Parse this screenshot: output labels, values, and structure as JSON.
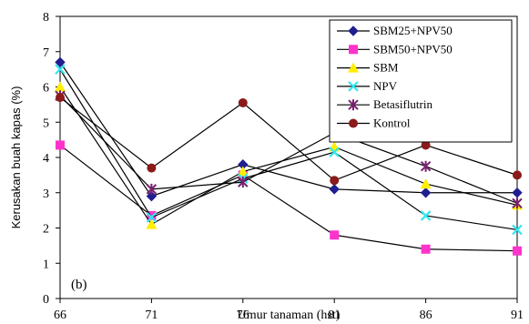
{
  "chart_data": {
    "type": "line",
    "x": [
      66,
      71,
      76,
      81,
      86,
      91
    ],
    "xlabel": "Umur tanaman (hst)",
    "ylabel": "Kerusakan buah kapas (%)",
    "ylim": [
      0,
      8
    ],
    "yticks": [
      0,
      1,
      2,
      3,
      4,
      5,
      6,
      7,
      8
    ],
    "grid": false,
    "legend_position": "top-right",
    "panel_label": "(b)",
    "series": [
      {
        "name": "SBM25+NPV50",
        "color": "#1f1f8f",
        "marker": "diamond",
        "values": [
          6.7,
          2.9,
          3.8,
          3.1,
          3.0,
          3.0
        ]
      },
      {
        "name": "SBM50+NPV50",
        "color": "#ff33cc",
        "marker": "square",
        "values": [
          4.35,
          2.35,
          3.5,
          1.8,
          1.4,
          1.35
        ]
      },
      {
        "name": "SBM",
        "color": "#ffee00",
        "marker": "triangle",
        "values": [
          6.0,
          2.1,
          3.6,
          4.3,
          3.25,
          2.65
        ]
      },
      {
        "name": "NPV",
        "color": "#33e6f0",
        "marker": "x",
        "values": [
          6.5,
          2.3,
          3.4,
          4.15,
          2.35,
          1.95
        ]
      },
      {
        "name": "Betasiflutrin",
        "color": "#7a1f6e",
        "marker": "star",
        "values": [
          5.75,
          3.1,
          3.3,
          4.7,
          3.75,
          2.7
        ]
      },
      {
        "name": "Kontrol",
        "color": "#8b1a1a",
        "marker": "circle",
        "values": [
          5.7,
          3.7,
          5.55,
          3.35,
          4.35,
          3.5
        ]
      }
    ]
  }
}
